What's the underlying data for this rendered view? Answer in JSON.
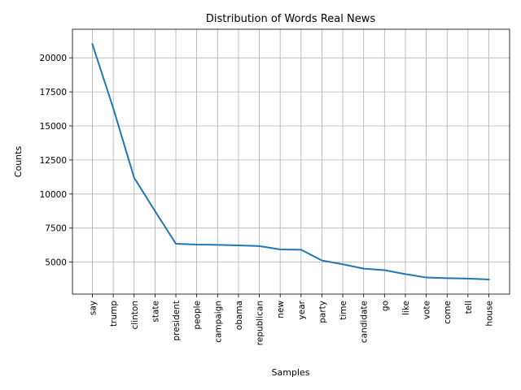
{
  "chart_data": {
    "type": "line",
    "title": "Distribution of Words Real News",
    "xlabel": "Samples",
    "ylabel": "Counts",
    "categories": [
      "say",
      "trump",
      "clinton",
      "state",
      "president",
      "people",
      "campaign",
      "obama",
      "republican",
      "new",
      "year",
      "party",
      "time",
      "candidate",
      "go",
      "like",
      "vote",
      "come",
      "tell",
      "house"
    ],
    "series": [
      {
        "values": [
          21000,
          16300,
          11200,
          8750,
          6350,
          6290,
          6270,
          6230,
          6180,
          5930,
          5910,
          5120,
          4840,
          4520,
          4410,
          4120,
          3870,
          3820,
          3790,
          3730
        ],
        "color": "#1f77b4"
      }
    ],
    "yticks": [
      5000,
      7500,
      10000,
      12500,
      15000,
      17500,
      20000
    ],
    "ytick_labels": [
      "5000",
      "7500",
      "10000",
      "12500",
      "15000",
      "17500",
      "20000"
    ],
    "ylim": [
      2650,
      22100
    ],
    "grid": true,
    "legend": false
  }
}
